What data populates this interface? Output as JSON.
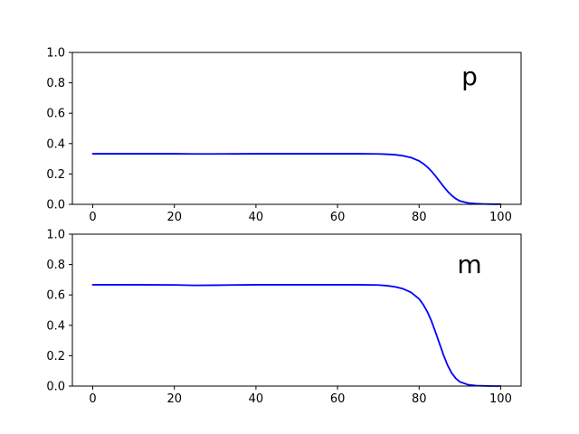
{
  "chart_data": [
    {
      "type": "line",
      "title": "",
      "xlabel": "",
      "ylabel": "",
      "annotation": "p",
      "xlim": [
        -5,
        105
      ],
      "ylim": [
        0.0,
        1.0
      ],
      "xticks": [
        0,
        20,
        40,
        60,
        80,
        100
      ],
      "yticks": [
        0.0,
        0.2,
        0.4,
        0.6,
        0.8,
        1.0
      ],
      "xtick_labels": [
        "0",
        "20",
        "40",
        "60",
        "80",
        "100"
      ],
      "ytick_labels": [
        "0.0",
        "0.2",
        "0.4",
        "0.6",
        "0.8",
        "1.0"
      ],
      "grid": false,
      "series": [
        {
          "color": "#0000ff",
          "x": [
            0,
            10,
            20,
            25,
            30,
            40,
            50,
            60,
            65,
            70,
            72,
            74,
            76,
            78,
            80,
            81,
            82,
            83,
            84,
            85,
            86,
            87,
            88,
            89,
            90,
            92,
            94,
            96,
            98,
            100
          ],
          "y": [
            0.333,
            0.333,
            0.333,
            0.332,
            0.332,
            0.333,
            0.333,
            0.333,
            0.333,
            0.332,
            0.33,
            0.327,
            0.32,
            0.308,
            0.286,
            0.268,
            0.246,
            0.219,
            0.187,
            0.152,
            0.117,
            0.085,
            0.058,
            0.037,
            0.022,
            0.009,
            0.004,
            0.002,
            0.001,
            0.001
          ]
        }
      ]
    },
    {
      "type": "line",
      "title": "",
      "xlabel": "",
      "ylabel": "",
      "annotation": "m",
      "xlim": [
        -5,
        105
      ],
      "ylim": [
        0.0,
        1.0
      ],
      "xticks": [
        0,
        20,
        40,
        60,
        80,
        100
      ],
      "yticks": [
        0.0,
        0.2,
        0.4,
        0.6,
        0.8,
        1.0
      ],
      "xtick_labels": [
        "0",
        "20",
        "40",
        "60",
        "80",
        "100"
      ],
      "ytick_labels": [
        "0.0",
        "0.2",
        "0.4",
        "0.6",
        "0.8",
        "1.0"
      ],
      "grid": false,
      "series": [
        {
          "color": "#0000ff",
          "x": [
            0,
            10,
            20,
            25,
            30,
            40,
            50,
            60,
            65,
            70,
            72,
            74,
            76,
            78,
            80,
            81,
            82,
            83,
            84,
            85,
            86,
            87,
            88,
            89,
            90,
            92,
            94,
            96,
            98,
            100
          ],
          "y": [
            0.667,
            0.667,
            0.666,
            0.663,
            0.664,
            0.667,
            0.667,
            0.667,
            0.667,
            0.665,
            0.661,
            0.654,
            0.641,
            0.617,
            0.574,
            0.537,
            0.49,
            0.43,
            0.357,
            0.28,
            0.203,
            0.136,
            0.085,
            0.05,
            0.028,
            0.009,
            0.003,
            0.001,
            0.0,
            0.0
          ]
        }
      ]
    }
  ]
}
